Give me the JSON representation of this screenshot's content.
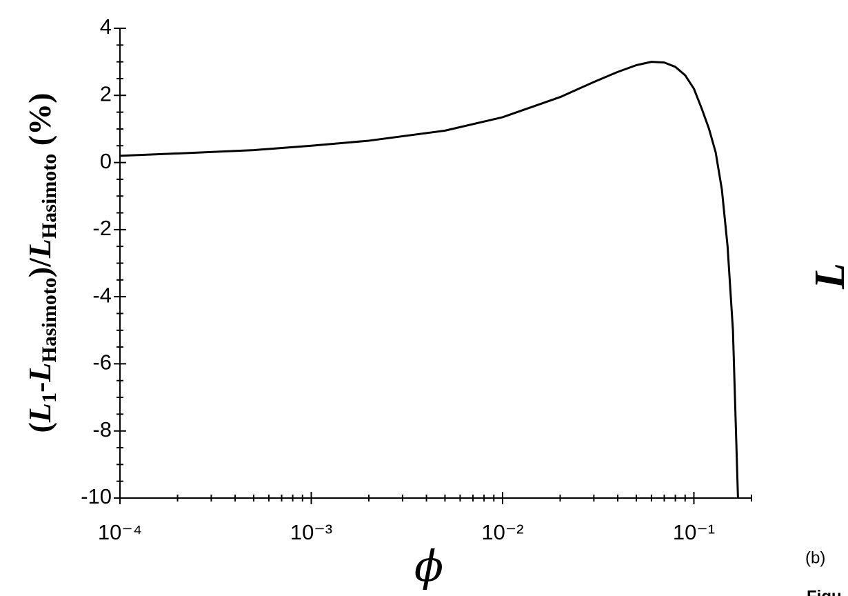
{
  "chart_data": {
    "type": "line",
    "xlabel": "ϕ",
    "ylabel": [
      "(",
      "L",
      "1",
      "-",
      "L",
      "Hasimoto",
      ")/",
      "L",
      "Hasimoto",
      " (%)"
    ],
    "annotations": [
      "L",
      "(b)",
      "Figu"
    ],
    "xscale": "log",
    "xlim": [
      0.0001,
      0.2
    ],
    "ylim": [
      -10,
      4
    ],
    "xticks": [
      {
        "value": 0.0001,
        "label": "10⁻⁴"
      },
      {
        "value": 0.001,
        "label": "10⁻³"
      },
      {
        "value": 0.01,
        "label": "10⁻²"
      },
      {
        "value": 0.1,
        "label": "10⁻¹"
      }
    ],
    "xminorticks": [
      0.0002,
      0.0003,
      0.0004,
      0.0005,
      0.0006,
      0.0007,
      0.0008,
      0.0009,
      0.002,
      0.003,
      0.004,
      0.005,
      0.006,
      0.007,
      0.008,
      0.009,
      0.02,
      0.03,
      0.04,
      0.05,
      0.06,
      0.07,
      0.08,
      0.09,
      0.2
    ],
    "yticks": [
      4,
      2,
      0,
      -2,
      -4,
      -6,
      -8,
      -10
    ],
    "yminorticks": [
      3.5,
      3,
      2.5,
      1.5,
      1,
      0.5,
      -0.5,
      -1,
      -1.5,
      -2.5,
      -3,
      -3.5,
      -4.5,
      -5,
      -5.5,
      -6.5,
      -7,
      -7.5,
      -8.5,
      -9,
      -9.5
    ],
    "series": [
      {
        "color": "#000000",
        "x": [
          0.0001,
          0.0002,
          0.0005,
          0.001,
          0.002,
          0.005,
          0.01,
          0.02,
          0.03,
          0.04,
          0.05,
          0.06,
          0.07,
          0.08,
          0.09,
          0.1,
          0.11,
          0.12,
          0.13,
          0.14,
          0.15,
          0.16,
          0.17
        ],
        "values": [
          0.2,
          0.27,
          0.37,
          0.5,
          0.65,
          0.95,
          1.35,
          1.95,
          2.4,
          2.7,
          2.9,
          3.0,
          2.98,
          2.85,
          2.6,
          2.2,
          1.6,
          1.0,
          0.3,
          -0.8,
          -2.5,
          -5.0,
          -10
        ]
      }
    ]
  }
}
